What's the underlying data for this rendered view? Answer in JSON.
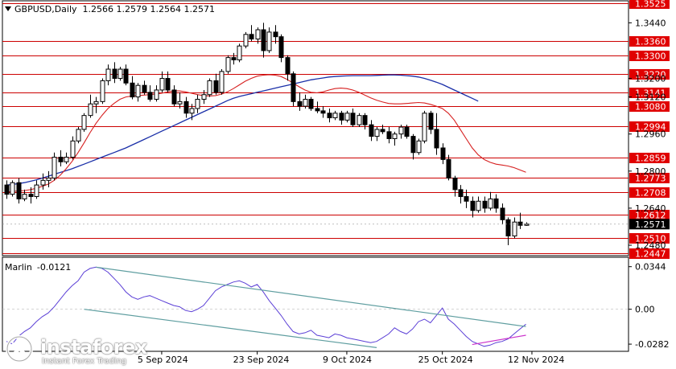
{
  "header": {
    "symbol_tf": "GBPUSD,Daily",
    "ohlc": "1.2566 1.2579 1.2564 1.2571"
  },
  "indicator": {
    "name": "Marlin",
    "value": "-0.0121"
  },
  "colors": {
    "candle": "#000000",
    "level_line": "#cc0000",
    "level_label_bg": "#e00000",
    "ma_fast": "#d62020",
    "ma_slow": "#1a2fa8",
    "osc": "#5b3fd6",
    "trend_upper": "#5f9ea0",
    "trend_lower": "#5f9ea0",
    "trend_magenta": "#cc33cc",
    "current_bg": "#000000"
  },
  "chart_data": [
    {
      "type": "candlestick",
      "title": "",
      "ylim": [
        1.2435,
        1.3535
      ],
      "y_ticks": [
        "1.3440",
        "1.3200",
        "1.3120",
        "1.2960",
        "1.2800",
        "1.2640",
        "1.2480"
      ],
      "levels": [
        "1.3525",
        "1.3360",
        "1.3300",
        "1.3220",
        "1.3141",
        "1.3080",
        "1.2994",
        "1.2859",
        "1.2773",
        "1.2708",
        "1.2612",
        "1.2510",
        "1.2447"
      ],
      "current_price": "1.2571",
      "x_labels": [
        "5 Sep 2024",
        "23 Sep 2024",
        "9 Oct 2024",
        "25 Oct 2024",
        "12 Nov 2024"
      ],
      "candles": [
        [
          1.274,
          1.276,
          1.268,
          1.27
        ],
        [
          1.27,
          1.276,
          1.269,
          1.275
        ],
        [
          1.275,
          1.277,
          1.266,
          1.268
        ],
        [
          1.268,
          1.272,
          1.267,
          1.27
        ],
        [
          1.27,
          1.273,
          1.266,
          1.269
        ],
        [
          1.269,
          1.276,
          1.268,
          1.274
        ],
        [
          1.274,
          1.279,
          1.272,
          1.276
        ],
        [
          1.276,
          1.28,
          1.273,
          1.277
        ],
        [
          1.277,
          1.288,
          1.276,
          1.286
        ],
        [
          1.286,
          1.289,
          1.282,
          1.284
        ],
        [
          1.284,
          1.288,
          1.283,
          1.286
        ],
        [
          1.286,
          1.295,
          1.285,
          1.293
        ],
        [
          1.293,
          1.299,
          1.292,
          1.298
        ],
        [
          1.298,
          1.305,
          1.297,
          1.304
        ],
        [
          1.304,
          1.313,
          1.303,
          1.309
        ],
        [
          1.309,
          1.312,
          1.305,
          1.31
        ],
        [
          1.31,
          1.32,
          1.309,
          1.319
        ],
        [
          1.319,
          1.326,
          1.317,
          1.324
        ],
        [
          1.324,
          1.327,
          1.318,
          1.32
        ],
        [
          1.32,
          1.325,
          1.319,
          1.324
        ],
        [
          1.324,
          1.326,
          1.317,
          1.318
        ],
        [
          1.318,
          1.321,
          1.311,
          1.312
        ],
        [
          1.312,
          1.318,
          1.31,
          1.317
        ],
        [
          1.317,
          1.319,
          1.313,
          1.314
        ],
        [
          1.314,
          1.317,
          1.31,
          1.311
        ],
        [
          1.311,
          1.317,
          1.31,
          1.315
        ],
        [
          1.315,
          1.323,
          1.314,
          1.32
        ],
        [
          1.32,
          1.323,
          1.314,
          1.315
        ],
        [
          1.315,
          1.317,
          1.308,
          1.309
        ],
        [
          1.309,
          1.314,
          1.307,
          1.31
        ],
        [
          1.31,
          1.312,
          1.303,
          1.305
        ],
        [
          1.305,
          1.309,
          1.302,
          1.307
        ],
        [
          1.307,
          1.313,
          1.305,
          1.311
        ],
        [
          1.311,
          1.315,
          1.309,
          1.313
        ],
        [
          1.313,
          1.32,
          1.312,
          1.319
        ],
        [
          1.319,
          1.322,
          1.313,
          1.314
        ],
        [
          1.314,
          1.324,
          1.313,
          1.323
        ],
        [
          1.323,
          1.33,
          1.322,
          1.329
        ],
        [
          1.329,
          1.331,
          1.326,
          1.328
        ],
        [
          1.328,
          1.335,
          1.327,
          1.334
        ],
        [
          1.334,
          1.34,
          1.333,
          1.339
        ],
        [
          1.339,
          1.343,
          1.336,
          1.337
        ],
        [
          1.337,
          1.342,
          1.335,
          1.341
        ],
        [
          1.341,
          1.344,
          1.329,
          1.332
        ],
        [
          1.332,
          1.342,
          1.331,
          1.34
        ],
        [
          1.34,
          1.343,
          1.335,
          1.338
        ],
        [
          1.338,
          1.339,
          1.327,
          1.329
        ],
        [
          1.329,
          1.33,
          1.319,
          1.322
        ],
        [
          1.322,
          1.323,
          1.308,
          1.31
        ],
        [
          1.31,
          1.314,
          1.306,
          1.308
        ],
        [
          1.308,
          1.313,
          1.307,
          1.311
        ],
        [
          1.311,
          1.312,
          1.306,
          1.307
        ],
        [
          1.307,
          1.31,
          1.305,
          1.306
        ],
        [
          1.306,
          1.308,
          1.303,
          1.305
        ],
        [
          1.305,
          1.307,
          1.301,
          1.303
        ],
        [
          1.303,
          1.306,
          1.302,
          1.305
        ],
        [
          1.305,
          1.306,
          1.3,
          1.302
        ],
        [
          1.302,
          1.306,
          1.301,
          1.305
        ],
        [
          1.305,
          1.307,
          1.299,
          1.3
        ],
        [
          1.3,
          1.305,
          1.299,
          1.304
        ],
        [
          1.304,
          1.305,
          1.298,
          1.3
        ],
        [
          1.3,
          1.302,
          1.293,
          1.295
        ],
        [
          1.295,
          1.299,
          1.293,
          1.298
        ],
        [
          1.298,
          1.3,
          1.296,
          1.297
        ],
        [
          1.297,
          1.299,
          1.292,
          1.294
        ],
        [
          1.294,
          1.297,
          1.291,
          1.296
        ],
        [
          1.296,
          1.3,
          1.294,
          1.299
        ],
        [
          1.299,
          1.3,
          1.294,
          1.295
        ],
        [
          1.295,
          1.296,
          1.285,
          1.288
        ],
        [
          1.288,
          1.294,
          1.287,
          1.293
        ],
        [
          1.293,
          1.306,
          1.292,
          1.305
        ],
        [
          1.305,
          1.306,
          1.296,
          1.298
        ],
        [
          1.298,
          1.305,
          1.287,
          1.29
        ],
        [
          1.29,
          1.292,
          1.283,
          1.285
        ],
        [
          1.285,
          1.287,
          1.276,
          1.277
        ],
        [
          1.277,
          1.278,
          1.269,
          1.272
        ],
        [
          1.272,
          1.274,
          1.266,
          1.269
        ],
        [
          1.269,
          1.272,
          1.264,
          1.267
        ],
        [
          1.267,
          1.269,
          1.26,
          1.263
        ],
        [
          1.263,
          1.269,
          1.262,
          1.267
        ],
        [
          1.267,
          1.269,
          1.262,
          1.264
        ],
        [
          1.264,
          1.271,
          1.263,
          1.268
        ],
        [
          1.268,
          1.27,
          1.262,
          1.264
        ],
        [
          1.264,
          1.266,
          1.257,
          1.259
        ],
        [
          1.259,
          1.26,
          1.248,
          1.252
        ],
        [
          1.252,
          1.26,
          1.251,
          1.258
        ],
        [
          1.258,
          1.262,
          1.255,
          1.2566
        ],
        [
          1.2566,
          1.2579,
          1.2564,
          1.2571
        ]
      ],
      "ma_fast": [
        1.271,
        1.2712,
        1.2714,
        1.2716,
        1.272,
        1.2726,
        1.2734,
        1.2744,
        1.276,
        1.2782,
        1.281,
        1.2842,
        1.288,
        1.2922,
        1.2966,
        1.3006,
        1.304,
        1.307,
        1.3092,
        1.311,
        1.312,
        1.3124,
        1.3126,
        1.3128,
        1.313,
        1.3132,
        1.3136,
        1.3142,
        1.3146,
        1.3146,
        1.3142,
        1.3136,
        1.313,
        1.3126,
        1.3124,
        1.3126,
        1.3132,
        1.3142,
        1.3156,
        1.3172,
        1.3188,
        1.32,
        1.321,
        1.3214,
        1.3216,
        1.3214,
        1.3208,
        1.3196,
        1.318,
        1.3164,
        1.315,
        1.314,
        1.3138,
        1.3142,
        1.315,
        1.3156,
        1.3158,
        1.3156,
        1.315,
        1.314,
        1.3128,
        1.3116,
        1.3106,
        1.3098,
        1.3092,
        1.309,
        1.309,
        1.3092,
        1.3094,
        1.3096,
        1.3094,
        1.3088,
        1.308,
        1.307,
        1.305,
        1.302,
        1.298,
        1.294,
        1.29,
        1.287,
        1.285,
        1.2838,
        1.283,
        1.2826,
        1.2822,
        1.2815,
        1.2805,
        1.2795
      ],
      "ma_slow": [
        1.274,
        1.2742,
        1.2746,
        1.275,
        1.2756,
        1.2762,
        1.277,
        1.2778,
        1.2786,
        1.2794,
        1.2802,
        1.281,
        1.282,
        1.283,
        1.284,
        1.285,
        1.286,
        1.287,
        1.288,
        1.289,
        1.29,
        1.2912,
        1.2924,
        1.2936,
        1.2948,
        1.296,
        1.2972,
        1.2984,
        1.2996,
        1.3008,
        1.302,
        1.3032,
        1.3044,
        1.3056,
        1.3068,
        1.308,
        1.3092,
        1.3104,
        1.3114,
        1.3122,
        1.3128,
        1.3134,
        1.314,
        1.3146,
        1.3152,
        1.3158,
        1.3164,
        1.317,
        1.3176,
        1.3182,
        1.3188,
        1.3194,
        1.3198,
        1.3202,
        1.3206,
        1.3208,
        1.321,
        1.3211,
        1.3212,
        1.3212,
        1.3212,
        1.3212,
        1.3213,
        1.3214,
        1.3215,
        1.3215,
        1.3214,
        1.3212,
        1.321,
        1.3206,
        1.32,
        1.3192,
        1.3184,
        1.3174,
        1.3162,
        1.315,
        1.3138,
        1.3126,
        1.3114,
        1.3102
      ],
      "ma_slow_start_index": 0
    },
    {
      "type": "line",
      "title": "Marlin",
      "ylim": [
        -0.034,
        0.042
      ],
      "y_ticks": [
        "0.0344",
        "0.00",
        "-0.0282"
      ],
      "series": [
        {
          "name": "Marlin",
          "values": [
            -0.026,
            -0.028,
            -0.022,
            -0.018,
            -0.015,
            -0.01,
            -0.006,
            -0.003,
            0.002,
            0.008,
            0.014,
            0.019,
            0.023,
            0.03,
            0.033,
            0.034,
            0.033,
            0.03,
            0.025,
            0.02,
            0.014,
            0.01,
            0.008,
            0.01,
            0.011,
            0.009,
            0.007,
            0.005,
            0.003,
            0.002,
            -0.001,
            -0.002,
            0.0,
            0.003,
            0.009,
            0.015,
            0.018,
            0.02,
            0.022,
            0.023,
            0.021,
            0.018,
            0.02,
            0.014,
            0.007,
            0.001,
            -0.005,
            -0.012,
            -0.018,
            -0.02,
            -0.019,
            -0.017,
            -0.021,
            -0.022,
            -0.023,
            -0.02,
            -0.021,
            -0.023,
            -0.024,
            -0.025,
            -0.026,
            -0.027,
            -0.026,
            -0.023,
            -0.02,
            -0.015,
            -0.018,
            -0.02,
            -0.016,
            -0.01,
            -0.008,
            -0.011,
            -0.005,
            0.001,
            -0.008,
            -0.012,
            -0.017,
            -0.022,
            -0.026,
            -0.028,
            -0.03,
            -0.029,
            -0.027,
            -0.026,
            -0.024,
            -0.02,
            -0.016,
            -0.0121
          ]
        }
      ],
      "trendlines": [
        {
          "kind": "upper",
          "from": [
            15,
            0.034
          ],
          "to": [
            87,
            -0.014
          ]
        },
        {
          "kind": "lower",
          "from": [
            13,
            0.0
          ],
          "to": [
            62,
            -0.031
          ]
        },
        {
          "kind": "magenta",
          "from": [
            78,
            -0.0285
          ],
          "to": [
            87,
            -0.021
          ]
        }
      ]
    }
  ]
}
